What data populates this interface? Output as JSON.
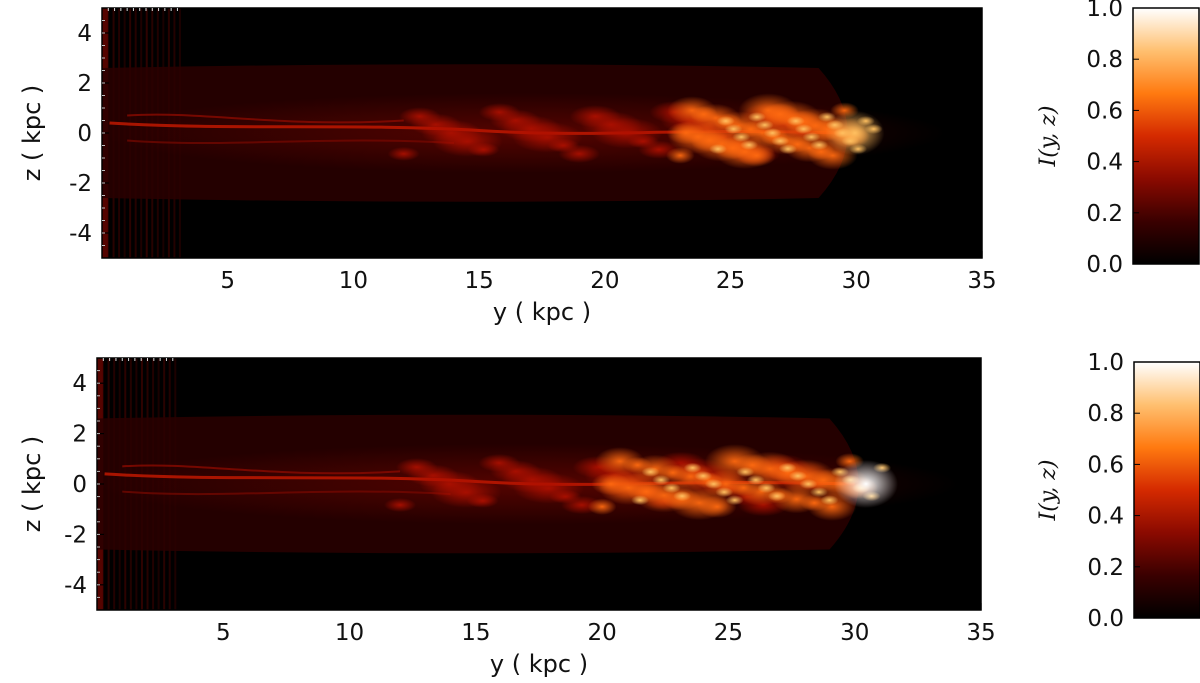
{
  "chart_data": [
    {
      "type": "heatmap",
      "title": "",
      "xlabel": "y ( kpc )",
      "ylabel": "z ( kpc )",
      "xlim": [
        0,
        35
      ],
      "ylim": [
        -5,
        5
      ],
      "xticks": [
        5,
        10,
        15,
        20,
        25,
        30,
        35
      ],
      "yticks": [
        4,
        2,
        0,
        -2,
        -4
      ],
      "colorbar": {
        "label": "I(y, z)",
        "range": [
          0.0,
          1.0
        ],
        "ticks": [
          "1.0",
          "0.8",
          "0.6",
          "0.4",
          "0.2",
          "0.0"
        ]
      },
      "colormap": [
        "#000000",
        "#3a0000",
        "#8b0a00",
        "#d52a00",
        "#ff7a10",
        "#ffc070",
        "#ffffff"
      ],
      "jet_extent_y": [
        0,
        30.5
      ],
      "jet_axis_z": 0,
      "head_intensity": 0.8
    },
    {
      "type": "heatmap",
      "title": "",
      "xlabel": "y ( kpc )",
      "ylabel": "z ( kpc )",
      "xlim": [
        0,
        35
      ],
      "ylim": [
        -5,
        5
      ],
      "xticks": [
        5,
        10,
        15,
        20,
        25,
        30,
        35
      ],
      "yticks": [
        4,
        2,
        0,
        -2,
        -4
      ],
      "colorbar": {
        "label": "I(y, z)",
        "range": [
          0.0,
          1.0
        ],
        "ticks": [
          "1.0",
          "0.8",
          "0.6",
          "0.4",
          "0.2",
          "0.0"
        ]
      },
      "colormap": [
        "#000000",
        "#3a0000",
        "#8b0a00",
        "#d52a00",
        "#ff7a10",
        "#ffc070",
        "#ffffff"
      ],
      "jet_extent_y": [
        0,
        31
      ],
      "jet_axis_z": 0,
      "head_intensity": 1.0
    }
  ]
}
